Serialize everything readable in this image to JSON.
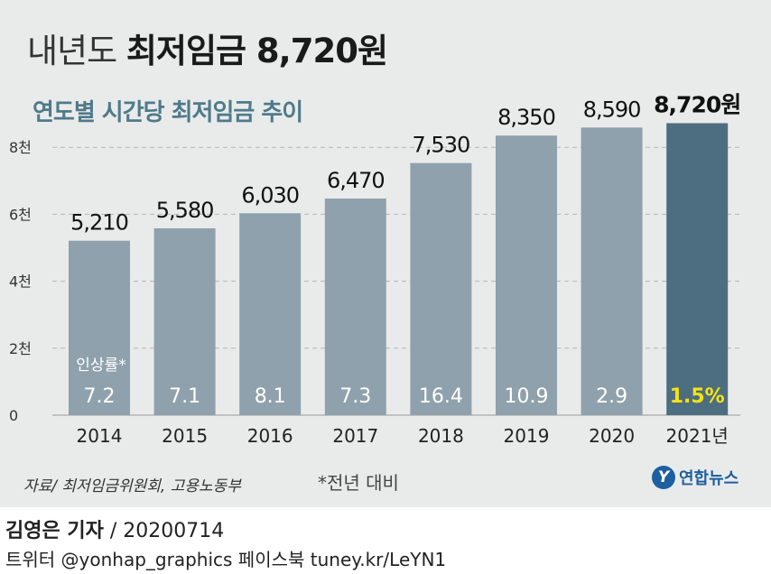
{
  "header": {
    "title_prefix": "내년도",
    "title_main": "최저임금 8,720원",
    "subtitle": "연도별 시간당 최저임금 추이"
  },
  "chart_data": {
    "type": "bar",
    "title": "내년도 최저임금 8,720원",
    "subtitle": "연도별 시간당 최저임금 추이",
    "categories": [
      "2014",
      "2015",
      "2016",
      "2017",
      "2018",
      "2019",
      "2020",
      "2021년"
    ],
    "values": [
      5210,
      5580,
      6030,
      6470,
      7530,
      8350,
      8590,
      8720
    ],
    "value_labels": [
      "5,210",
      "5,580",
      "6,030",
      "6,470",
      "7,530",
      "8,350",
      "8,590",
      "8,720원"
    ],
    "rate_header": "인상률*",
    "rates": [
      7.2,
      7.1,
      8.1,
      7.3,
      16.4,
      10.9,
      2.9,
      1.5
    ],
    "rate_labels": [
      "7.2",
      "7.1",
      "8.1",
      "7.3",
      "16.4",
      "10.9",
      "2.9",
      "1.5%"
    ],
    "y_ticks": [
      0,
      2000,
      4000,
      6000,
      8000
    ],
    "y_tick_labels": [
      "0",
      "2천",
      "4천",
      "6천",
      "8천"
    ],
    "ylim": [
      0,
      8720
    ],
    "grid": true,
    "colors": {
      "bar": "#8fa1ac",
      "bar_highlight": "#4d6e80",
      "rate_text": "#ffffff",
      "rate_highlight": "#f5e313",
      "grid": "#b5b5b5",
      "subtitle": "#4f7a8a"
    }
  },
  "footer": {
    "source": "자료/ 최저임금위원회, 고용노동부",
    "footnote": "*전년 대비",
    "logo_mark": "Y",
    "logo_text": "연합뉴스",
    "author": "김영은 기자",
    "date": "/ 20200714",
    "social": "트위터 @yonhap_graphics  페이스북 tuney.kr/LeYN1"
  }
}
